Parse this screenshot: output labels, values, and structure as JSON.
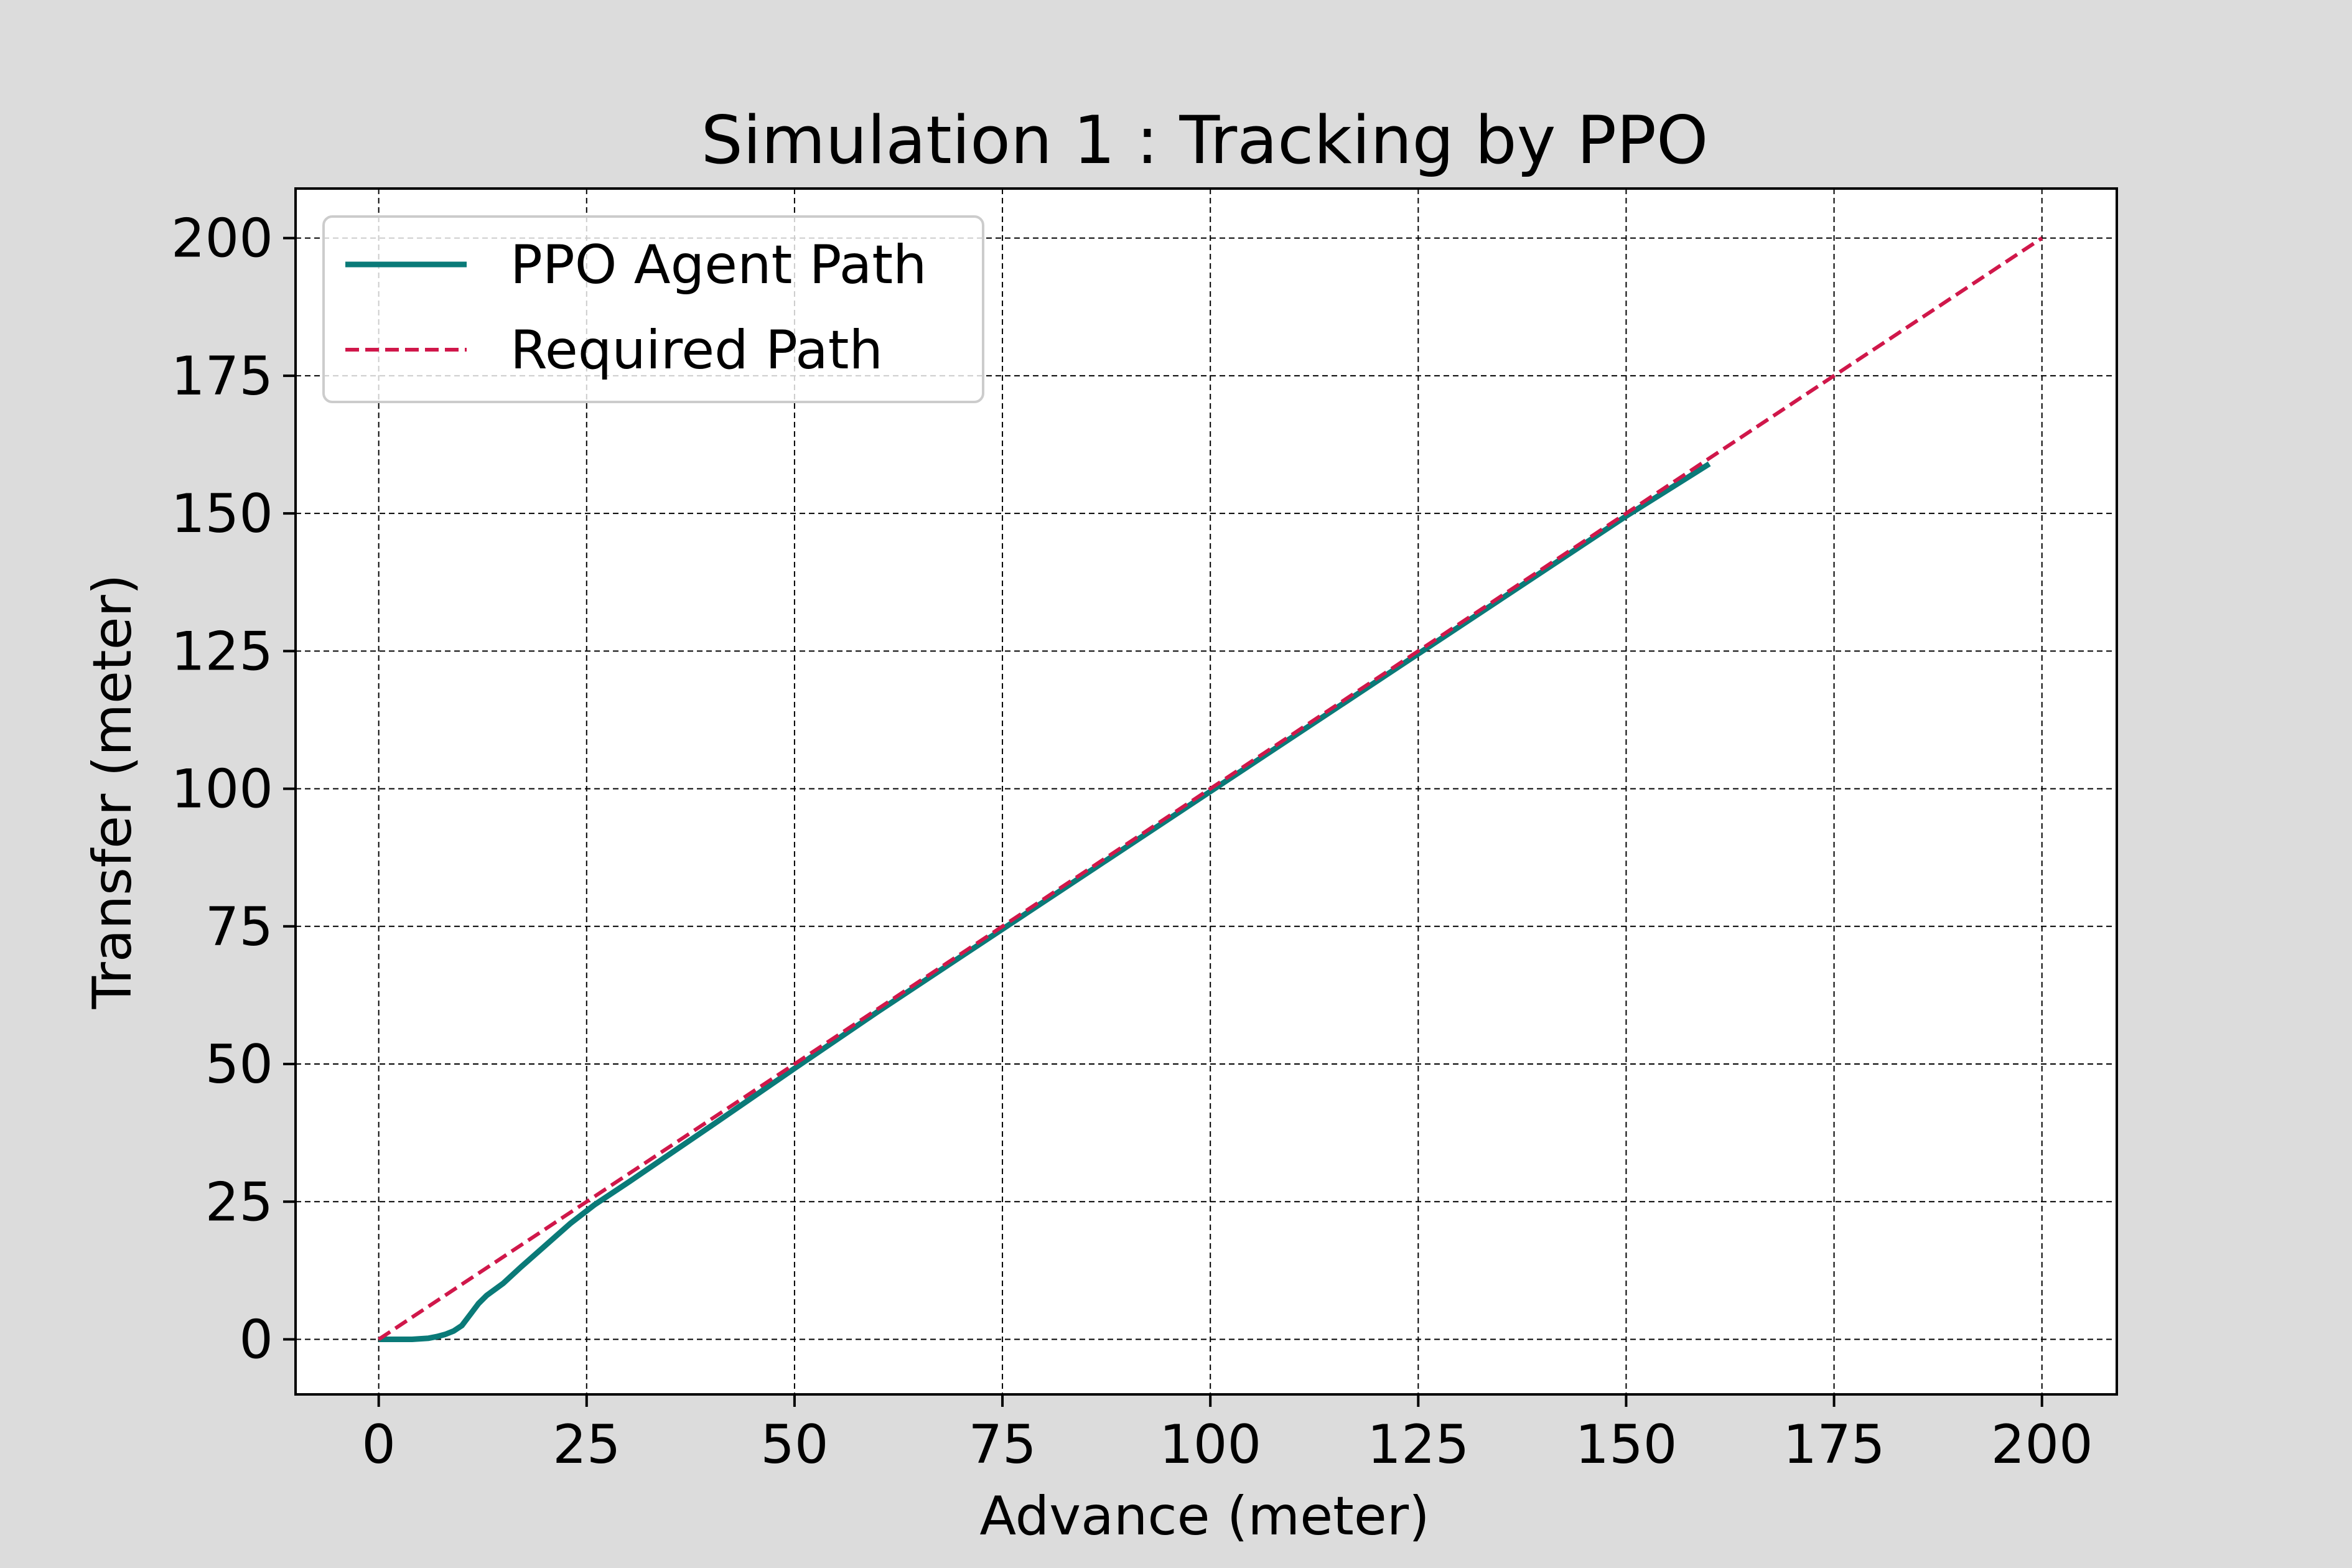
{
  "chart_data": {
    "type": "line",
    "title": "Simulation 1 : Tracking by PPO",
    "xlabel": "Advance (meter)",
    "ylabel": "Transfer (meter)",
    "xlim": [
      -10,
      209
    ],
    "ylim": [
      -10,
      209
    ],
    "xticks": [
      0,
      25,
      50,
      75,
      100,
      125,
      150,
      175,
      200
    ],
    "yticks": [
      0,
      25,
      50,
      75,
      100,
      125,
      150,
      175,
      200
    ],
    "grid": true,
    "legend_position": "top-left",
    "series": [
      {
        "name": "PPO Agent Path",
        "color": "#0a7a78",
        "style": "solid",
        "x": [
          0,
          2,
          4,
          6,
          7,
          8,
          9,
          10,
          11,
          12,
          13,
          15,
          17,
          20,
          23,
          26,
          30,
          40,
          50,
          60,
          75,
          100,
          125,
          150,
          160
        ],
        "y": [
          0,
          0,
          0,
          0.2,
          0.5,
          0.9,
          1.5,
          2.5,
          4.5,
          6.5,
          8,
          10.2,
          13,
          17,
          21,
          24.5,
          28.5,
          38.8,
          49.2,
          59.5,
          74.5,
          99.5,
          124.5,
          149.5,
          159
        ]
      },
      {
        "name": "Required Path",
        "color": "#d0174a",
        "style": "dashed",
        "x": [
          0,
          200
        ],
        "y": [
          0,
          200
        ]
      }
    ]
  }
}
